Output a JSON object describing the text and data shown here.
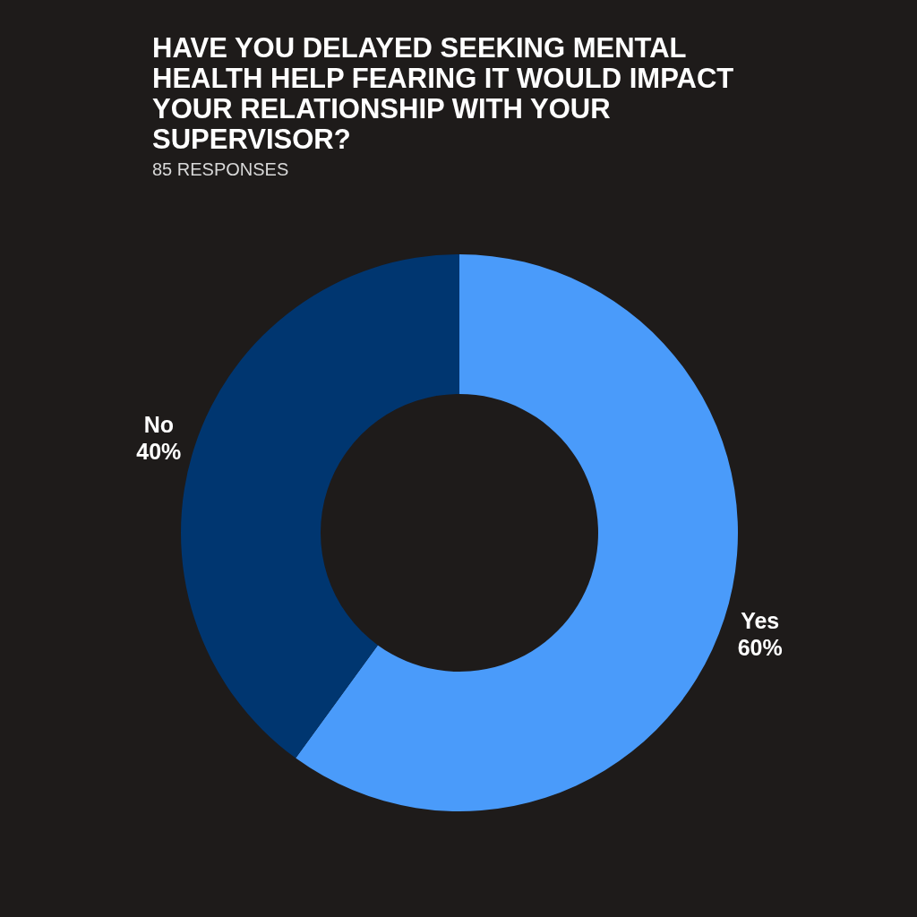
{
  "chart_data": {
    "type": "donut",
    "title": "HAVE YOU DELAYED SEEKING MENTAL HEALTH HELP FEARING IT WOULD IMPACT YOUR RELATIONSHIP WITH YOUR SUPERVISOR?",
    "subtitle": "85 RESPONSES",
    "categories": [
      "Yes",
      "No"
    ],
    "values": [
      60,
      40
    ],
    "colors": [
      "#4a9bfa",
      "#003670"
    ],
    "value_labels": [
      "60%",
      "40%"
    ]
  }
}
